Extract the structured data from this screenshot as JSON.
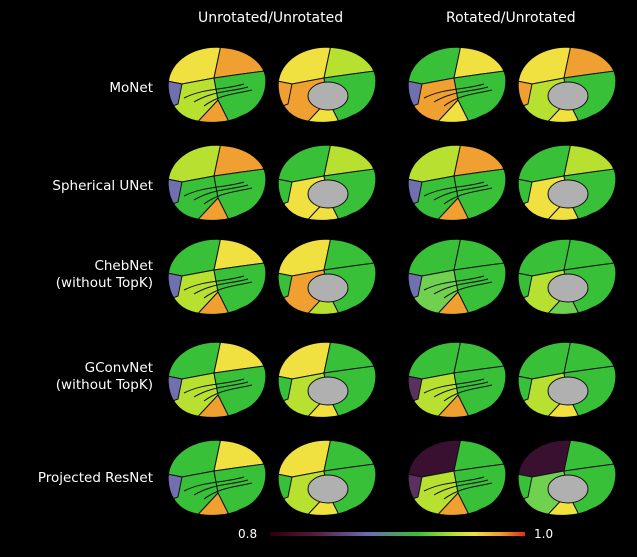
{
  "columns": [
    "Unrotated/Unrotated",
    "Rotated/Unrotated"
  ],
  "rows": [
    {
      "label": [
        "MoNet"
      ]
    },
    {
      "label": [
        "Spherical UNet"
      ]
    },
    {
      "label": [
        "ChebNet",
        "(without TopK)"
      ]
    },
    {
      "label": [
        "GConvNet",
        "(without TopK)"
      ]
    },
    {
      "label": [
        "Projected ResNet"
      ]
    }
  ],
  "colorbar": {
    "min_label": "0.8",
    "max_label": "1.0"
  },
  "palette": {
    "orange": "#f0a030",
    "yellow": "#f0e040",
    "ygreen": "#b8e030",
    "green": "#38c038",
    "lgreen": "#70d050",
    "blue": "#7070b0",
    "purple": "#5a3060",
    "dark": "#3a1030",
    "gray": "#b0b0b0"
  }
}
